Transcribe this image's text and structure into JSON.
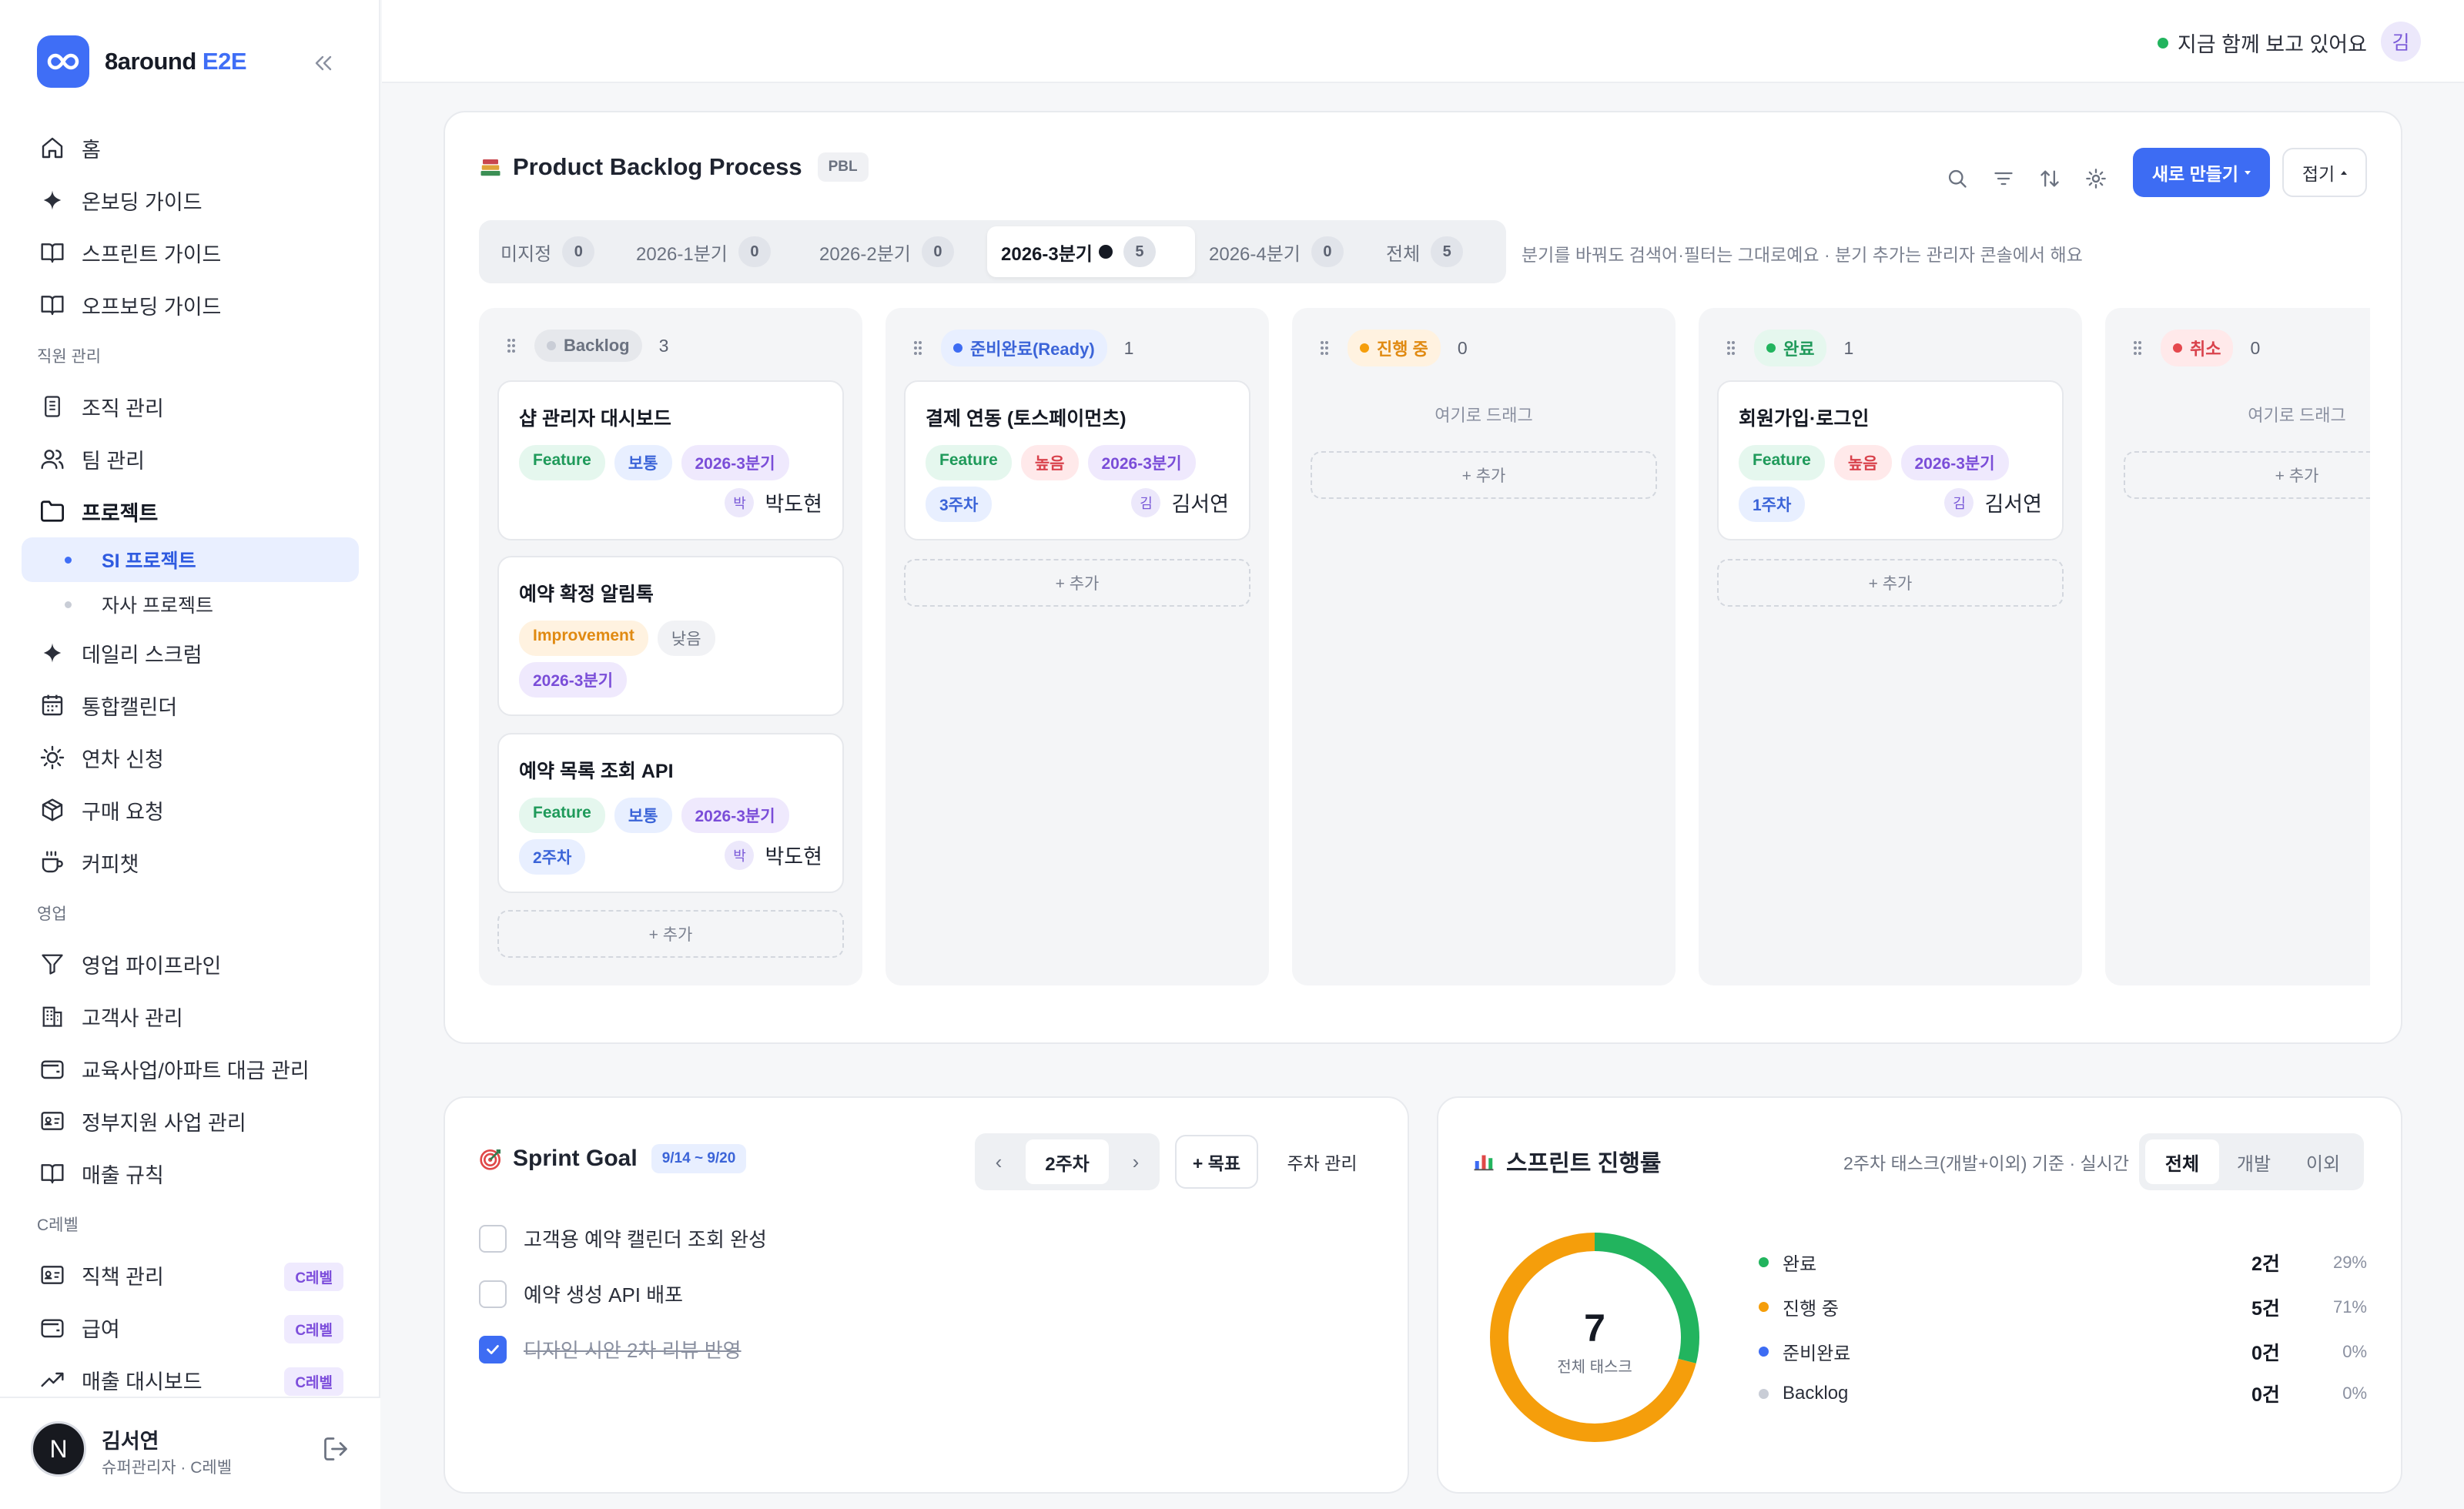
{
  "sidebar": {
    "brand_main": "8around",
    "brand_accent": "E2E",
    "items_top": [
      {
        "label": "홈",
        "icon": "home-icon"
      },
      {
        "label": "온보딩 가이드",
        "icon": "sparkle-icon"
      },
      {
        "label": "스프린트 가이드",
        "icon": "book-icon"
      },
      {
        "label": "오프보딩 가이드",
        "icon": "book-icon"
      }
    ],
    "section_staff": "직원 관리",
    "items_staff": [
      {
        "label": "조직 관리",
        "icon": "clipboard-icon"
      },
      {
        "label": "팀 관리",
        "icon": "users-icon"
      },
      {
        "label": "프로젝트",
        "icon": "folder-icon"
      }
    ],
    "sub_items": [
      {
        "label": "SI 프로젝트"
      },
      {
        "label": "자사 프로젝트"
      }
    ],
    "items_mid": [
      {
        "label": "데일리 스크럼",
        "icon": "sparkle-icon"
      },
      {
        "label": "통합캘린더",
        "icon": "calendar-icon"
      },
      {
        "label": "연차 신청",
        "icon": "sun-icon"
      },
      {
        "label": "구매 요청",
        "icon": "package-icon"
      },
      {
        "label": "커피챗",
        "icon": "coffee-icon"
      }
    ],
    "section_sales": "영업",
    "items_sales": [
      {
        "label": "영업 파이프라인",
        "icon": "filter-icon"
      },
      {
        "label": "고객사 관리",
        "icon": "building-icon"
      },
      {
        "label": "교육사업/아파트 대금 관리",
        "icon": "wallet-icon"
      },
      {
        "label": "정부지원 사업 관리",
        "icon": "id-card-icon"
      },
      {
        "label": "매출 규칙",
        "icon": "book-icon"
      }
    ],
    "section_c": "C레벨",
    "items_c": [
      {
        "label": "직책 관리",
        "icon": "id-card-icon",
        "badge": "C레벨"
      },
      {
        "label": "급여",
        "icon": "wallet-icon",
        "badge": "C레벨"
      },
      {
        "label": "매출 대시보드",
        "icon": "trend-icon",
        "badge": "C레벨"
      }
    ],
    "user": {
      "initial": "N",
      "name": "김서연",
      "role": "슈퍼관리자 · C레벨"
    }
  },
  "topbar": {
    "live_text": "지금 함께 보고 있어요",
    "me_initial": "김"
  },
  "backlog": {
    "title": "Product Backlog Process",
    "badge": "PBL",
    "new_button": "새로 만들기",
    "fold_button": "접기",
    "hint": "분기를 바꿔도 검색어·필터는 그대로예요 · 분기 추가는 관리자 콘솔에서 해요",
    "quarter_tabs": [
      {
        "label": "미지정",
        "count": "0"
      },
      {
        "label": "2026-1분기",
        "count": "0"
      },
      {
        "label": "2026-2분기",
        "count": "0"
      },
      {
        "label": "2026-3분기",
        "count": "5",
        "active": true
      },
      {
        "label": "2026-4분기",
        "count": "0"
      },
      {
        "label": "전체",
        "count": "5"
      }
    ],
    "columns": [
      {
        "name": "Backlog",
        "count": "3",
        "dot": "#c9cdd6",
        "bg": "#e6e8ec",
        "fg": "#6b7280",
        "cards": [
          {
            "title": "샵 관리자 대시보드",
            "tags": [
              [
                "Feature",
                "t-feat"
              ],
              [
                "보통",
                "t-nor"
              ],
              [
                "2026-3분기",
                "t-q"
              ]
            ],
            "assignee_initial": "박",
            "assignee": "박도현"
          },
          {
            "title": "예약 확정 알림톡",
            "tags": [
              [
                "Improvement",
                "t-imp"
              ],
              [
                "낮음",
                "t-low"
              ],
              [
                "2026-3분기",
                "t-q"
              ]
            ]
          },
          {
            "title": "예약 목록 조회 API",
            "tags": [
              [
                "Feature",
                "t-feat"
              ],
              [
                "보통",
                "t-nor"
              ],
              [
                "2026-3분기",
                "t-q"
              ],
              [
                "2주차",
                "t-nor"
              ]
            ],
            "assignee_initial": "박",
            "assignee": "박도현"
          }
        ],
        "add": "+ 추가"
      },
      {
        "name": "준비완료(Ready)",
        "count": "1",
        "dot": "#3d6cf3",
        "bg": "#e8efff",
        "fg": "#3b64d8",
        "cards": [
          {
            "title": "결제 연동 (토스페이먼츠)",
            "tags": [
              [
                "Feature",
                "t-feat"
              ],
              [
                "높음",
                "t-high"
              ],
              [
                "2026-3분기",
                "t-q"
              ],
              [
                "3주차",
                "t-nor"
              ]
            ],
            "assignee_initial": "김",
            "assignee": "김서연"
          }
        ],
        "add": "+ 추가"
      },
      {
        "name": "진행 중",
        "count": "0",
        "dot": "#f59e0b",
        "bg": "#fff2e0",
        "fg": "#e08a12",
        "cards": [],
        "drop": "여기로 드래그",
        "add": "+ 추가"
      },
      {
        "name": "완료",
        "count": "1",
        "dot": "#22b45e",
        "bg": "#e5f7ee",
        "fg": "#1f9a5a",
        "cards": [
          {
            "title": "회원가입·로그인",
            "tags": [
              [
                "Feature",
                "t-feat"
              ],
              [
                "높음",
                "t-high"
              ],
              [
                "2026-3분기",
                "t-q"
              ],
              [
                "1주차",
                "t-nor"
              ]
            ],
            "assignee_initial": "김",
            "assignee": "김서연"
          }
        ],
        "add": "+ 추가"
      },
      {
        "name": "취소",
        "count": "0",
        "dot": "#e5484d",
        "bg": "#ffe9ea",
        "fg": "#d9424c",
        "cards": [],
        "drop": "여기로 드래그",
        "add": "+ 추가"
      }
    ]
  },
  "sprint_goal": {
    "title": "Sprint Goal",
    "date_range": "9/14 ~ 9/20",
    "week": "2주차",
    "prev": "‹",
    "next": "›",
    "add_goal": "+ 목표",
    "manage": "주차 관리",
    "goals": [
      {
        "text": "고객용 예약 캘린더 조회 완성",
        "done": false
      },
      {
        "text": "예약 생성 API 배포",
        "done": false
      },
      {
        "text": "디자인 시안 2차 리뷰 반영",
        "done": true
      }
    ]
  },
  "progress": {
    "title": "스프린트 진행률",
    "hint": "2주차 태스크(개발+이외) 기준 · 실시간",
    "segments": [
      "전체",
      "개발",
      "이외"
    ],
    "total_value": "7",
    "total_label": "전체 태스크",
    "legend": [
      {
        "name": "완료",
        "count": "2건",
        "pct": "29%",
        "color": "#22b45e",
        "fraction": 0.29
      },
      {
        "name": "진행 중",
        "count": "5건",
        "pct": "71%",
        "color": "#f59e0b",
        "fraction": 0.71
      },
      {
        "name": "준비완료",
        "count": "0건",
        "pct": "0%",
        "color": "#3d6cf3",
        "fraction": 0
      },
      {
        "name": "Backlog",
        "count": "0건",
        "pct": "0%",
        "color": "#c9cdd6",
        "fraction": 0
      }
    ]
  }
}
